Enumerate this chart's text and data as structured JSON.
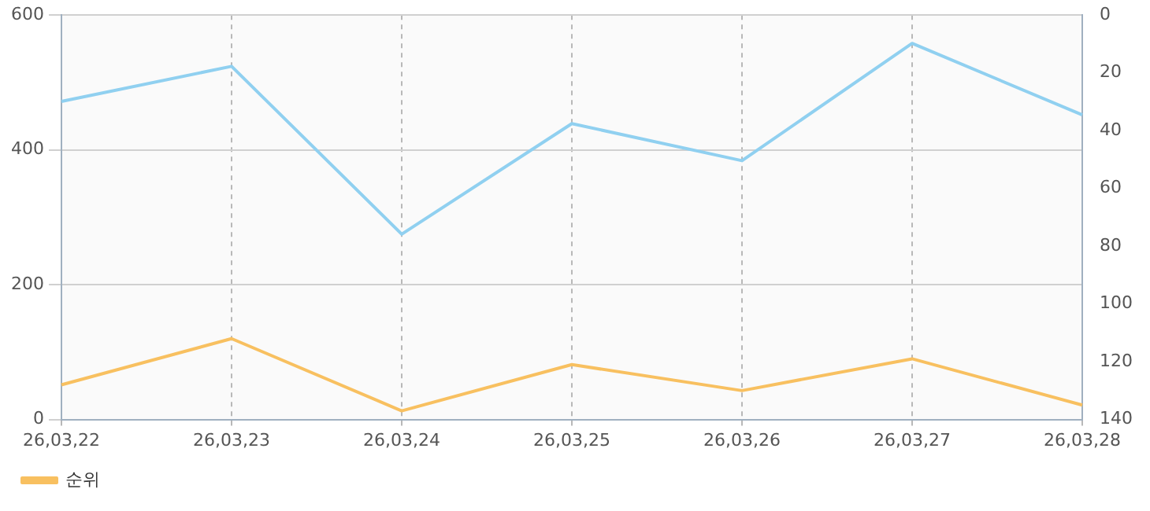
{
  "chart_data": {
    "type": "line",
    "categories": [
      "26,03,22",
      "26,03,23",
      "26,03,24",
      "26,03,25",
      "26,03,26",
      "26,03,27",
      "26,03,28"
    ],
    "series": [
      {
        "color": "#90d0f0",
        "values": [
          472,
          524,
          275,
          439,
          384,
          558,
          452
        ]
      },
      {
        "name": "순위",
        "color": "#f8c060",
        "axis": "y2",
        "values": [
          128,
          112,
          137,
          121,
          130,
          119,
          135
        ]
      }
    ],
    "ylim": [
      0,
      600
    ],
    "yticks": [
      0,
      200,
      400,
      600
    ],
    "y2lim": [
      140,
      0
    ],
    "y2ticks": [
      0,
      20,
      40,
      60,
      80,
      100,
      120,
      140
    ],
    "grid": true,
    "legend": "bottom left",
    "marker": "none",
    "line_style": "solid"
  }
}
